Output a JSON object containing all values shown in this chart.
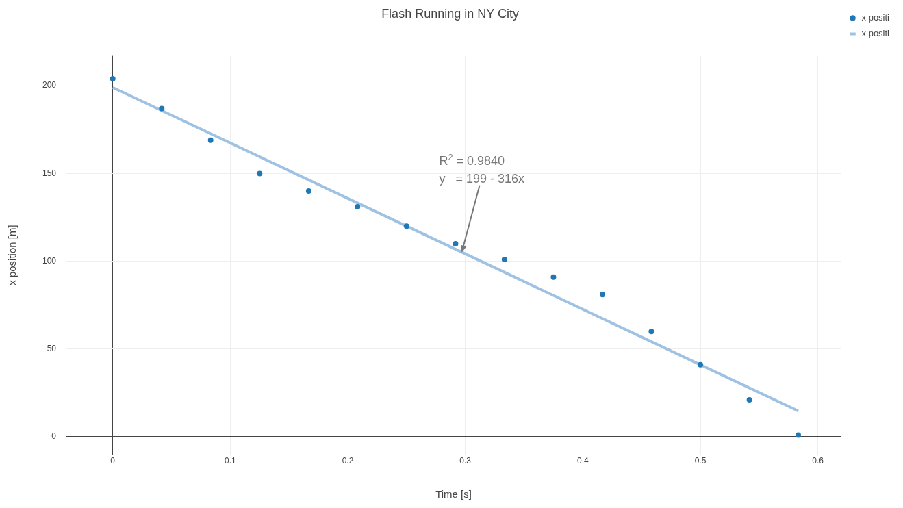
{
  "chart_data": {
    "type": "scatter",
    "title": "Flash Running in NY City",
    "xlabel": "Time [s]",
    "ylabel": "x position [m]",
    "x": [
      0,
      0.0417,
      0.0833,
      0.125,
      0.1667,
      0.2083,
      0.25,
      0.2917,
      0.3333,
      0.375,
      0.4167,
      0.4583,
      0.5,
      0.5417,
      0.5833
    ],
    "series": [
      {
        "name": "x positi",
        "color": "#1f77b4",
        "marker": "circle",
        "values": [
          204,
          187,
          169,
          150,
          140,
          131,
          120,
          110,
          101,
          91,
          81,
          60,
          41,
          21,
          1
        ]
      },
      {
        "name": "x positi",
        "type": "line",
        "color": "#9fc2e2",
        "marker": "none",
        "x": [
          0,
          0.5833
        ],
        "values": [
          199,
          14.7
        ]
      }
    ],
    "xlim": [
      -0.04,
      0.62
    ],
    "ylim": [
      -10,
      217
    ],
    "xticks": [
      0,
      0.1,
      0.2,
      0.3,
      0.4,
      0.5,
      0.6
    ],
    "yticks": [
      0,
      50,
      100,
      150,
      200
    ],
    "grid": true,
    "legend": "top right",
    "annotations": [
      {
        "text": "R$^{2}$ = 0.9840\ny   = 199 - 316x",
        "x": 0.297,
        "y": 105
      }
    ]
  }
}
